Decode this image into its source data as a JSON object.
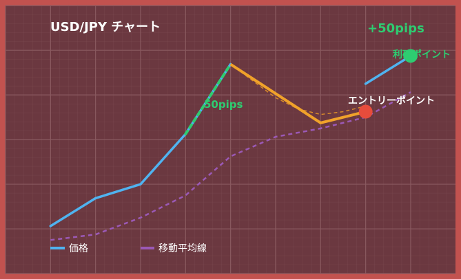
{
  "chart_data": {
    "type": "line",
    "title": "USD/JPY チャート",
    "x": [
      1,
      2,
      3,
      4,
      5,
      6,
      7,
      8,
      9
    ],
    "xlim": [
      0,
      9.9
    ],
    "ylim": [
      0,
      100
    ],
    "grid": true,
    "legend_position": "bottom-left",
    "series": [
      {
        "name": "価格",
        "color": "#4fb3f0",
        "style": "solid",
        "values": [
          17,
          27,
          32,
          50,
          75,
          null,
          null,
          68,
          78
        ]
      },
      {
        "name": "移動平均線",
        "color": "#9b59b6",
        "style": "dashed",
        "values": [
          12,
          14,
          20,
          28,
          42,
          49,
          52,
          56,
          65
        ]
      }
    ],
    "highlight_path": {
      "color": "#f0a22a",
      "x": [
        5,
        7,
        8
      ],
      "values": [
        75,
        54,
        58
      ]
    },
    "projection_path": {
      "color": "#d98a2a",
      "x": [
        5,
        5.5,
        6,
        6.5,
        7,
        7.5,
        8
      ],
      "values": [
        75,
        69,
        63,
        59,
        57,
        58,
        60
      ]
    },
    "rise_segment": {
      "color": "#2ecc71",
      "x": [
        4,
        5
      ],
      "values": [
        50,
        75
      ]
    },
    "entry_point": {
      "x": 8,
      "y": 58,
      "label": "エントリーポイント",
      "color": "#e74c3c"
    },
    "target_point": {
      "x": 9,
      "y": 78,
      "label": "利確ポイント",
      "color": "#2ecc71"
    },
    "annotations": [
      {
        "text": "+50pips",
        "color": "#2ecc71"
      },
      {
        "text": "50pips",
        "color": "#2ecc71"
      }
    ]
  },
  "colors": {
    "frame": "#c2524f",
    "background": "#6b3840",
    "grid": "#8a5a60",
    "text": "#ffffff"
  }
}
